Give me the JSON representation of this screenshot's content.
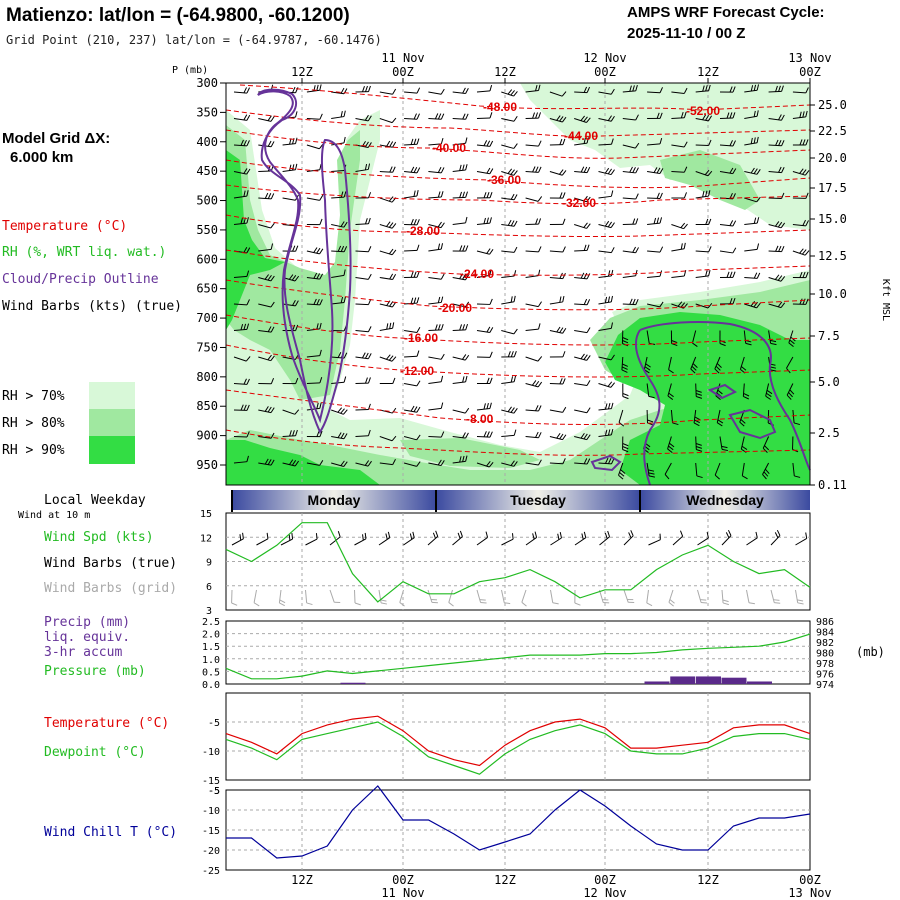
{
  "header": {
    "title": "Matienzo:  lat/lon = (-64.9800, -60.1200)",
    "subtitle": "Grid Point (210, 237) lat/lon = (-64.9787, -60.1476)",
    "cycle_line1": "AMPS WRF Forecast Cycle:",
    "cycle_line2": "2025-11-10 / 00  Z"
  },
  "left_labels": {
    "grid_dx_line1": "Model Grid ΔX:",
    "grid_dx_line2": "6.000 km",
    "temperature": "Temperature (°C)",
    "rh": "RH (%, WRT liq. wat.)",
    "cloud": "Cloud/Precip Outline",
    "wind_barbs": "Wind Barbs (kts) (true)",
    "rh70": "RH > 70%",
    "rh80": "RH > 80%",
    "rh90": "RH > 90%",
    "local_weekday": "Local Weekday",
    "wind_at": "Wind at 10 m",
    "wind_spd": "Wind Spd (kts)",
    "wind_barbs_true": "Wind Barbs (true)",
    "wind_barbs_grid": "Wind Barbs (grid)",
    "precip_l1": "Precip (mm)",
    "precip_l2": "liq. equiv.",
    "precip_l3": "3-hr accum",
    "pressure": "Pressure (mb)",
    "temp2": "Temperature (°C)",
    "dewpoint": "Dewpoint (°C)",
    "windchill": "Wind Chill T (°C)"
  },
  "colors": {
    "temperature": "#e00000",
    "rh": "#22bb22",
    "cloud": "#663399",
    "windchill": "#000099",
    "grid_barb": "#aaaaaa",
    "rh70": "#d8f8d8",
    "rh80": "#a0e8a0",
    "rh90": "#33dd44",
    "precip": "#5a2a8a"
  },
  "chart_data": [
    {
      "type": "contour",
      "name": "time-height cross-section",
      "ylabel_left": "P (mb)",
      "ylabel_right": "Kft MSL",
      "pressure_ticks": [
        "300",
        "350",
        "400",
        "450",
        "500",
        "550",
        "600",
        "650",
        "700",
        "750",
        "800",
        "850",
        "900",
        "950"
      ],
      "kft_ticks": [
        "25.0",
        "22.5",
        "20.0",
        "17.5",
        "15.0",
        "12.5",
        "10.0",
        "7.5",
        "5.0",
        "2.5",
        "0.11"
      ],
      "time_ticks_top": [
        {
          "hour": "12Z",
          "date": ""
        },
        {
          "hour": "00Z",
          "date": "11 Nov"
        },
        {
          "hour": "12Z",
          "date": ""
        },
        {
          "hour": "00Z",
          "date": "12 Nov"
        },
        {
          "hour": "12Z",
          "date": ""
        },
        {
          "hour": "00Z",
          "date": "13 Nov"
        }
      ],
      "temperature_contour_labels": [
        "-48.00",
        "-52.00",
        "-44.00",
        "-40.00",
        "-36.00",
        "-32.00",
        "-28.00",
        "-24.00",
        "-20.00",
        "-16.00",
        "-12.00",
        "-8.00"
      ]
    },
    {
      "type": "band",
      "name": "local weekday",
      "days": [
        "Monday",
        "Tuesday",
        "Wednesday"
      ]
    },
    {
      "type": "line",
      "name": "wind speed",
      "y_ticks": [
        "15",
        "12",
        "9",
        "6",
        "3"
      ],
      "ylim": [
        3,
        15
      ],
      "x_hours": [
        3,
        6,
        9,
        12,
        15,
        18,
        21,
        24,
        27,
        30,
        33,
        36,
        39,
        42,
        45,
        48,
        51,
        54,
        57,
        60,
        63,
        66,
        69,
        72
      ],
      "series": [
        {
          "name": "Wind Spd (kts)",
          "values": [
            10.5,
            9.0,
            11.0,
            13.8,
            13.8,
            7.5,
            4.0,
            6.5,
            5.0,
            5.0,
            6.5,
            7.0,
            8.0,
            6.5,
            4.5,
            5.5,
            5.5,
            8.0,
            9.8,
            11.0,
            9.0,
            7.5,
            8.0,
            5.8
          ]
        }
      ]
    },
    {
      "type": "line_bar",
      "name": "precip and pressure",
      "y_left_ticks": [
        "2.5",
        "2.0",
        "1.5",
        "1.0",
        "0.5",
        "0.0"
      ],
      "ylim_left": [
        0,
        2.5
      ],
      "y_right_ticks": [
        "986",
        "984",
        "982",
        "980",
        "978",
        "976",
        "974"
      ],
      "ylim_right": [
        974,
        986
      ],
      "right_unit": "(mb)",
      "x_hours": [
        3,
        6,
        9,
        12,
        15,
        18,
        21,
        24,
        27,
        30,
        33,
        36,
        39,
        42,
        45,
        48,
        51,
        54,
        57,
        60,
        63,
        66,
        69,
        72
      ],
      "pressure": [
        977.0,
        975.0,
        975.0,
        975.5,
        976.5,
        976.0,
        976.5,
        977.0,
        977.5,
        978.0,
        978.5,
        979.0,
        979.5,
        979.5,
        979.5,
        979.8,
        979.8,
        980.0,
        980.5,
        980.8,
        981.0,
        981.2,
        982.0,
        983.5
      ],
      "precip": [
        0,
        0,
        0,
        0,
        0,
        0.05,
        0,
        0,
        0,
        0,
        0,
        0,
        0,
        0,
        0,
        0,
        0,
        0.1,
        0.3,
        0.3,
        0.25,
        0.1,
        0,
        0
      ]
    },
    {
      "type": "line",
      "name": "temperature and dewpoint",
      "y_ticks": [
        "-5",
        "-10",
        "-15"
      ],
      "ylim": [
        -15,
        0
      ],
      "x_hours": [
        3,
        6,
        9,
        12,
        15,
        18,
        21,
        24,
        27,
        30,
        33,
        36,
        39,
        42,
        45,
        48,
        51,
        54,
        57,
        60,
        63,
        66,
        69,
        72
      ],
      "series": [
        {
          "name": "Temperature (°C)",
          "values": [
            -7.0,
            -8.5,
            -10.5,
            -7.0,
            -5.5,
            -4.5,
            -4.0,
            -6.5,
            -10.0,
            -11.5,
            -12.5,
            -9.0,
            -6.5,
            -5.0,
            -4.5,
            -6.0,
            -9.5,
            -9.5,
            -9.0,
            -8.5,
            -6.0,
            -5.5,
            -5.5,
            -7.0
          ]
        },
        {
          "name": "Dewpoint (°C)",
          "values": [
            -8.0,
            -9.5,
            -11.5,
            -8.0,
            -7.0,
            -6.0,
            -5.0,
            -7.5,
            -11.0,
            -12.5,
            -14.0,
            -10.5,
            -8.0,
            -6.5,
            -5.5,
            -7.0,
            -10.0,
            -10.5,
            -10.5,
            -9.5,
            -7.5,
            -7.0,
            -7.0,
            -8.0
          ]
        }
      ]
    },
    {
      "type": "line",
      "name": "wind chill",
      "y_ticks": [
        "-5",
        "-10",
        "-15",
        "-20",
        "-25"
      ],
      "y_top_tick": "-5",
      "ylim": [
        -25,
        -5
      ],
      "x_hours": [
        3,
        6,
        9,
        12,
        15,
        18,
        21,
        24,
        27,
        30,
        33,
        36,
        39,
        42,
        45,
        48,
        51,
        54,
        57,
        60,
        63,
        66,
        69,
        72
      ],
      "series": [
        {
          "name": "Wind Chill T (°C)",
          "values": [
            -17,
            -17,
            -22,
            -21.5,
            -19,
            -10,
            -4,
            -12.5,
            -12.5,
            -16,
            -20,
            -18,
            -16,
            -10,
            -5,
            -9,
            -14,
            -18.5,
            -20,
            -20,
            -14,
            -12,
            -12,
            -11
          ]
        }
      ],
      "time_ticks_bottom": [
        {
          "hour": "12Z",
          "date": ""
        },
        {
          "hour": "00Z",
          "date": "11 Nov"
        },
        {
          "hour": "12Z",
          "date": ""
        },
        {
          "hour": "00Z",
          "date": "12 Nov"
        },
        {
          "hour": "12Z",
          "date": ""
        },
        {
          "hour": "00Z",
          "date": "13 Nov"
        }
      ]
    }
  ]
}
